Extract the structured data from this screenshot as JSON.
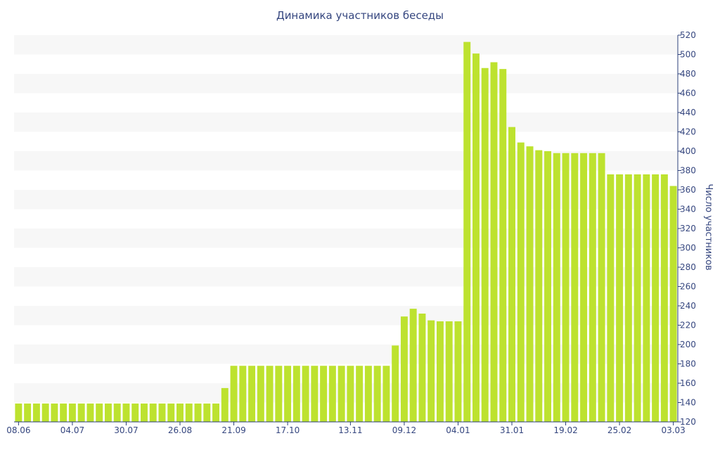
{
  "chart_data": {
    "type": "bar",
    "title": "Динамика участников беседы",
    "ylabel": "Число участников",
    "xlabel": "",
    "ylim": [
      120,
      520
    ],
    "yticks": [
      120,
      140,
      160,
      180,
      200,
      220,
      240,
      260,
      280,
      300,
      320,
      340,
      360,
      380,
      400,
      420,
      440,
      460,
      480,
      500,
      520
    ],
    "x_tick_labels": [
      "08.06",
      "04.07",
      "30.07",
      "26.08",
      "21.09",
      "17.10",
      "13.11",
      "09.12",
      "04.01",
      "31.01",
      "19.02",
      "25.02",
      "03.03"
    ],
    "y_axis_position": "right",
    "grid": "alternating horizontal bands",
    "values": [
      139,
      139,
      139,
      139,
      139,
      139,
      139,
      139,
      139,
      139,
      139,
      139,
      139,
      139,
      139,
      139,
      139,
      139,
      139,
      139,
      139,
      139,
      139,
      155,
      178,
      178,
      178,
      178,
      178,
      178,
      178,
      178,
      178,
      178,
      178,
      178,
      178,
      178,
      178,
      178,
      178,
      178,
      199,
      229,
      237,
      232,
      225,
      224,
      224,
      224,
      513,
      501,
      486,
      492,
      485,
      425,
      409,
      405,
      401,
      400,
      398,
      398,
      398,
      398,
      398,
      398,
      376,
      376,
      376,
      376,
      376,
      376,
      376,
      364
    ],
    "colors": {
      "bar": "#bde22f",
      "band": "#f7f7f7",
      "text": "#35467f",
      "axis": "#2b3f7a"
    }
  }
}
